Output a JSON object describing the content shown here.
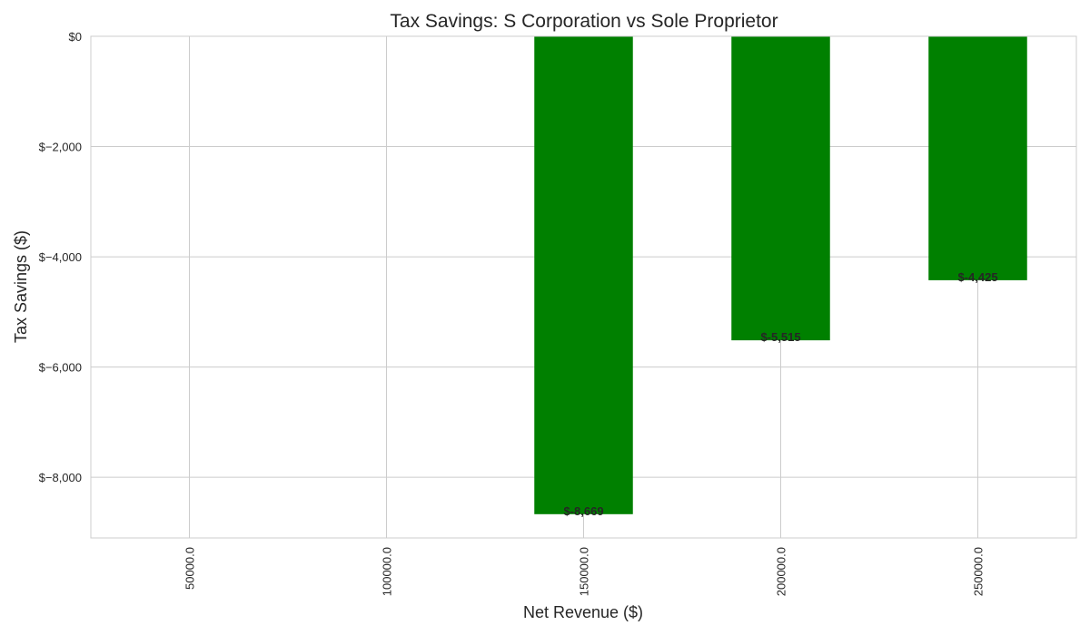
{
  "chart_data": {
    "type": "bar",
    "title": "Tax Savings: S Corporation vs Sole Proprietor",
    "xlabel": "Net Revenue ($)",
    "ylabel": "Tax Savings ($)",
    "categories": [
      "50000.0",
      "100000.0",
      "150000.0",
      "200000.0",
      "250000.0"
    ],
    "values": [
      0,
      0,
      -8669,
      -5515,
      -4425
    ],
    "data_labels": [
      "",
      "",
      "$-8,669",
      "$-5,515",
      "$-4,425"
    ],
    "ylim": [
      -9100,
      0
    ],
    "yticks": [
      0,
      -2000,
      -4000,
      -6000,
      -8000
    ],
    "ytick_labels": [
      "$0",
      "$−2,000",
      "$−4,000",
      "$−6,000",
      "$−8,000"
    ],
    "bar_color": "#008000",
    "grid": true,
    "legend": "none"
  }
}
